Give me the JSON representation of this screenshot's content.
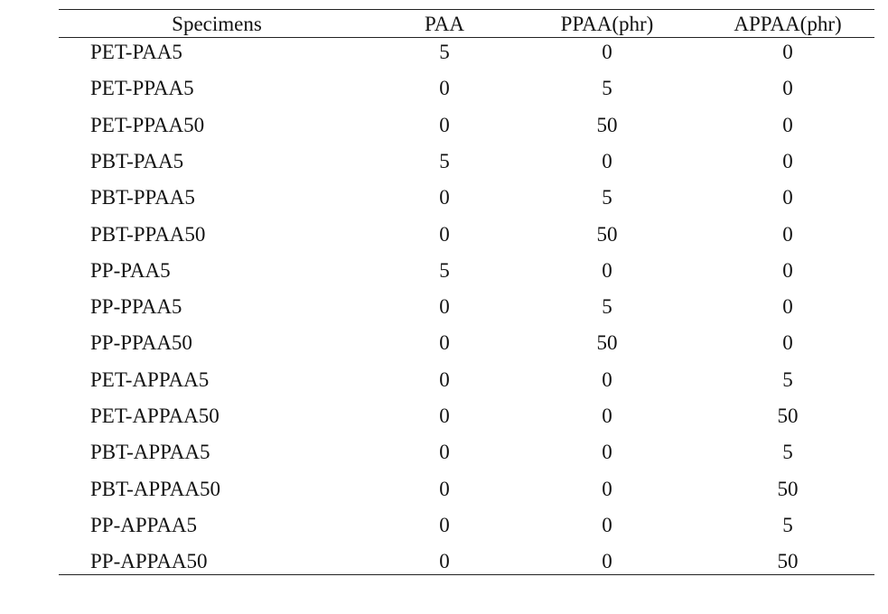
{
  "table": {
    "header": [
      "Specimens",
      "PAA",
      "PPAA(phr)",
      "APPAA(phr)"
    ],
    "rows": [
      [
        "PET-PAA5",
        5,
        0,
        0
      ],
      [
        "PET-PPAA5",
        0,
        5,
        0
      ],
      [
        "PET-PPAA50",
        0,
        50,
        0
      ],
      [
        "PBT-PAA5",
        5,
        0,
        0
      ],
      [
        "PBT-PPAA5",
        0,
        5,
        0
      ],
      [
        "PBT-PPAA50",
        0,
        50,
        0
      ],
      [
        "PP-PAA5",
        5,
        0,
        0
      ],
      [
        "PP-PPAA5",
        0,
        5,
        0
      ],
      [
        "PP-PPAA50",
        0,
        50,
        0
      ],
      [
        "PET-APPAA5",
        0,
        0,
        5
      ],
      [
        "PET-APPAA50",
        0,
        0,
        50
      ],
      [
        "PBT-APPAA5",
        0,
        0,
        5
      ],
      [
        "PBT-APPAA50",
        0,
        0,
        50
      ],
      [
        "PP-APPAA5",
        0,
        0,
        5
      ],
      [
        "PP-APPAA50",
        0,
        0,
        50
      ]
    ]
  }
}
